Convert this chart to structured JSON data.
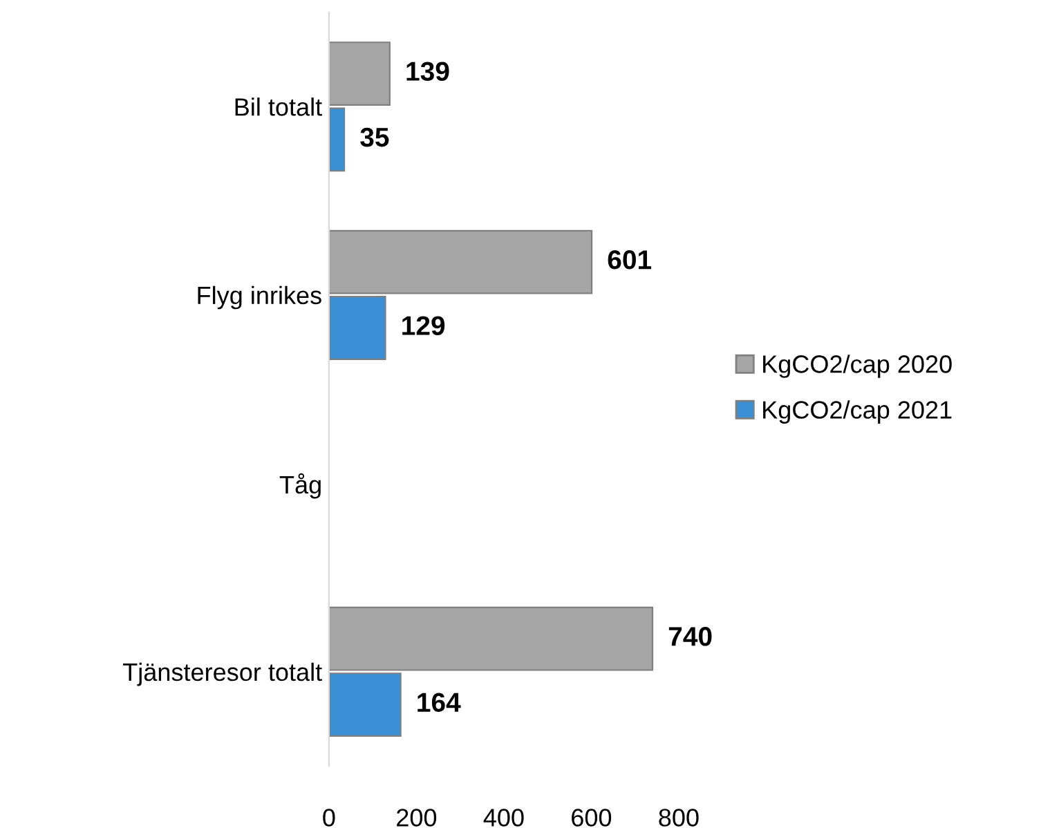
{
  "chart_data": {
    "type": "bar",
    "orientation": "horizontal",
    "categories": [
      "Bil totalt",
      "Flyg inrikes",
      "Tåg",
      "Tjänsteresor totalt"
    ],
    "series": [
      {
        "name": "KgCO2/cap 2020",
        "color": "#a6a6a6",
        "values": [
          139,
          601,
          null,
          740
        ]
      },
      {
        "name": "KgCO2/cap 2021",
        "color": "#3b8fd4",
        "values": [
          35,
          129,
          null,
          164
        ]
      }
    ],
    "xlim": [
      0,
      800
    ],
    "xticks": [
      0,
      200,
      400,
      600,
      800
    ],
    "data_labels": true,
    "legend": "right",
    "grid": false
  }
}
